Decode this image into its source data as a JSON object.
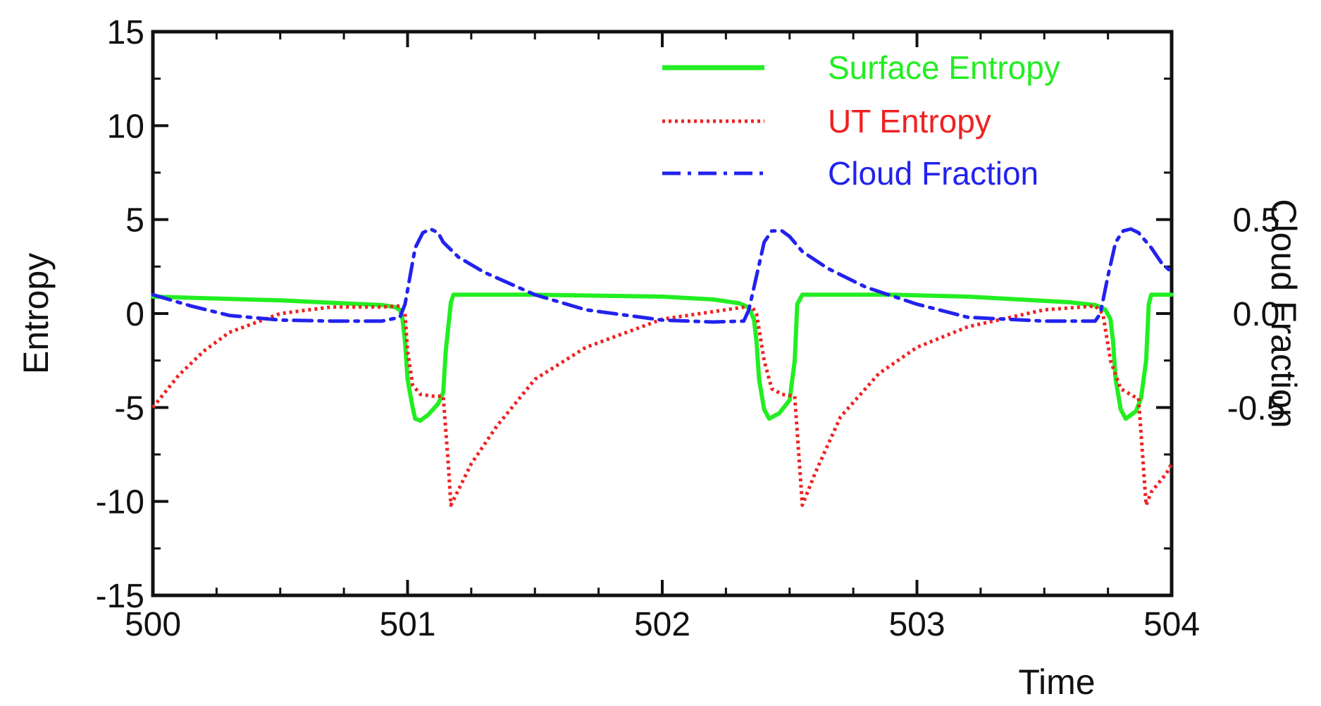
{
  "chart_data": {
    "type": "line",
    "title": "",
    "xlabel": "Time",
    "ylabel": "Entropy",
    "ylabel_right": "Cloud Fraction",
    "xlim": [
      500,
      504
    ],
    "ylim": [
      -15,
      15
    ],
    "ylim_right": [
      -1.5,
      1.5
    ],
    "grid": false,
    "legend_position": "top-right",
    "x_ticks": [
      "500",
      "501",
      "502",
      "503",
      "504"
    ],
    "y_ticks": [
      "-15",
      "-10",
      "-5",
      "0",
      "5",
      "10",
      "15"
    ],
    "y_right_ticks": [
      "-0.5",
      "0.0",
      "0.5"
    ],
    "series": [
      {
        "name": "Surface Entropy",
        "color": "#22ee22",
        "style": "solid",
        "axis": "left",
        "x": [
          500.0,
          500.5,
          500.9,
          500.95,
          500.97,
          500.98,
          500.99,
          501.0,
          501.02,
          501.03,
          501.05,
          501.08,
          501.12,
          501.14,
          501.15,
          501.17,
          501.18,
          501.5,
          502.0,
          502.2,
          502.3,
          502.32,
          502.34,
          502.36,
          502.37,
          502.38,
          502.4,
          502.42,
          502.46,
          502.5,
          502.52,
          502.53,
          502.55,
          502.9,
          503.2,
          503.6,
          503.7,
          503.72,
          503.74,
          503.76,
          503.77,
          503.78,
          503.8,
          503.82,
          503.86,
          503.88,
          503.9,
          503.91,
          503.92,
          503.94,
          504.0
        ],
        "values": [
          0.9,
          0.7,
          0.45,
          0.35,
          0.2,
          -0.3,
          -1.5,
          -3.5,
          -5.0,
          -5.6,
          -5.7,
          -5.4,
          -4.8,
          -4.2,
          -2.0,
          0.6,
          1.0,
          1.0,
          0.9,
          0.75,
          0.55,
          0.45,
          0.3,
          -0.3,
          -1.5,
          -3.5,
          -5.1,
          -5.6,
          -5.3,
          -4.6,
          -2.5,
          0.5,
          1.0,
          1.0,
          0.9,
          0.6,
          0.45,
          0.35,
          0.2,
          -0.3,
          -1.5,
          -3.5,
          -5.1,
          -5.6,
          -5.2,
          -4.5,
          -2.5,
          0.5,
          1.0,
          1.0,
          1.0
        ]
      },
      {
        "name": "UT Entropy",
        "color": "#ee2222",
        "style": "dotted",
        "axis": "left",
        "x": [
          500.0,
          500.1,
          500.2,
          500.3,
          500.5,
          500.7,
          500.9,
          500.97,
          500.99,
          501.0,
          501.02,
          501.05,
          501.1,
          501.14,
          501.16,
          501.17,
          501.25,
          501.35,
          501.5,
          501.7,
          502.0,
          502.3,
          502.35,
          502.37,
          502.4,
          502.43,
          502.47,
          502.52,
          502.55,
          502.6,
          502.7,
          502.85,
          503.0,
          503.2,
          503.5,
          503.7,
          503.73,
          503.76,
          503.8,
          503.85,
          503.87,
          503.9,
          503.92,
          503.95,
          503.98,
          504.0
        ],
        "values": [
          -5.0,
          -3.3,
          -2.0,
          -1.0,
          0.0,
          0.35,
          0.35,
          0.4,
          0.0,
          -2.0,
          -3.8,
          -4.3,
          -4.4,
          -4.4,
          -8.0,
          -10.2,
          -8.0,
          -6.0,
          -3.5,
          -1.8,
          -0.3,
          0.3,
          0.4,
          0.0,
          -2.5,
          -4.0,
          -4.3,
          -4.4,
          -10.2,
          -8.5,
          -5.5,
          -3.2,
          -1.8,
          -0.7,
          0.2,
          0.4,
          0.0,
          -2.5,
          -4.0,
          -4.4,
          -4.5,
          -10.2,
          -9.5,
          -9.0,
          -8.5,
          -8.0
        ]
      },
      {
        "name": "Cloud Fraction",
        "color": "#2222ee",
        "style": "dashdot",
        "axis": "right",
        "x": [
          500.0,
          500.15,
          500.3,
          500.5,
          500.7,
          500.9,
          500.97,
          500.99,
          501.01,
          501.03,
          501.06,
          501.09,
          501.12,
          501.14,
          501.2,
          501.3,
          501.5,
          501.7,
          502.0,
          502.2,
          502.32,
          502.34,
          502.37,
          502.4,
          502.43,
          502.47,
          502.5,
          502.55,
          502.65,
          502.8,
          503.0,
          503.2,
          503.5,
          503.7,
          503.72,
          503.75,
          503.78,
          503.81,
          503.84,
          503.87,
          503.92,
          503.96,
          504.0
        ],
        "values": [
          0.1,
          0.04,
          -0.01,
          -0.035,
          -0.04,
          -0.04,
          -0.02,
          0.05,
          0.2,
          0.35,
          0.43,
          0.45,
          0.43,
          0.38,
          0.3,
          0.22,
          0.1,
          0.02,
          -0.035,
          -0.045,
          -0.04,
          0.02,
          0.2,
          0.38,
          0.44,
          0.44,
          0.41,
          0.33,
          0.24,
          0.14,
          0.05,
          -0.02,
          -0.04,
          -0.04,
          0.0,
          0.2,
          0.38,
          0.44,
          0.45,
          0.43,
          0.35,
          0.27,
          0.22
        ]
      }
    ]
  }
}
